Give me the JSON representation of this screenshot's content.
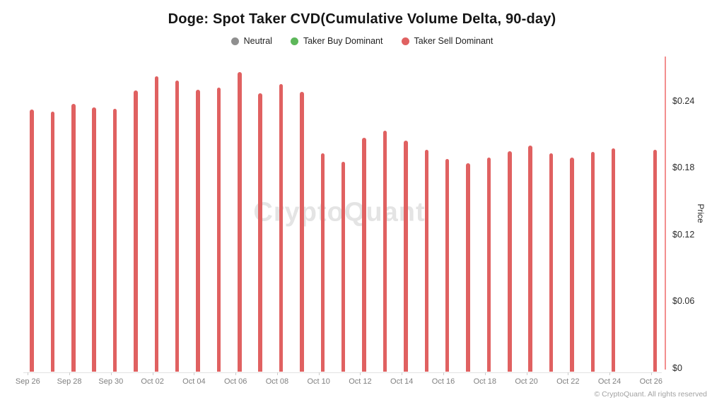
{
  "header": {
    "title": "Doge: Spot Taker CVD(Cumulative Volume Delta, 90-day)"
  },
  "legend": {
    "items": [
      {
        "label": "Neutral",
        "color": "#8f8f8f"
      },
      {
        "label": "Taker Buy Dominant",
        "color": "#5db75a"
      },
      {
        "label": "Taker Sell Dominant",
        "color": "#e06161"
      }
    ]
  },
  "watermark": "CryptoQuant",
  "footer": {
    "copyright": "© CryptoQuant. All rights reserved"
  },
  "colors": {
    "bar": "#e06161",
    "right_axis_line": "#f28f8f",
    "x_axis_line": "#e3e3e3",
    "watermark": "#e4e4e4"
  },
  "chart_data": {
    "type": "bar",
    "title": "Doge: Spot Taker CVD(Cumulative Volume Delta, 90-day)",
    "xlabel": "",
    "ylabel": "Price",
    "ylabel_side": "right",
    "ylim": [
      0,
      0.28
    ],
    "grid": false,
    "legend_position": "top-center",
    "categories": [
      "Sep 26",
      "Sep 27",
      "Sep 28",
      "Sep 29",
      "Sep 30",
      "Oct 01",
      "Oct 02",
      "Oct 03",
      "Oct 04",
      "Oct 05",
      "Oct 06",
      "Oct 07",
      "Oct 08",
      "Oct 09",
      "Oct 10",
      "Oct 11",
      "Oct 12",
      "Oct 13",
      "Oct 14",
      "Oct 15",
      "Oct 16",
      "Oct 17",
      "Oct 18",
      "Oct 19",
      "Oct 20",
      "Oct 21",
      "Oct 22",
      "Oct 23",
      "Oct 24",
      "Oct 25",
      "Oct 26"
    ],
    "series": [
      {
        "name": "Taker Sell Dominant",
        "color": "#e06161",
        "values": [
          0.232,
          0.23,
          0.237,
          0.234,
          0.233,
          0.249,
          0.262,
          0.258,
          0.25,
          0.252,
          0.266,
          0.247,
          0.255,
          0.248,
          0.193,
          0.185,
          0.207,
          0.213,
          0.204,
          0.196,
          0.188,
          0.184,
          0.189,
          0.195,
          0.2,
          0.193,
          0.189,
          0.194,
          0.197,
          null,
          0.196
        ]
      }
    ],
    "x_tick_labels": [
      "Sep 26",
      "Sep 28",
      "Sep 30",
      "Oct 02",
      "Oct 04",
      "Oct 06",
      "Oct 08",
      "Oct 10",
      "Oct 12",
      "Oct 14",
      "Oct 16",
      "Oct 18",
      "Oct 20",
      "Oct 22",
      "Oct 24",
      "Oct 26"
    ],
    "y_ticks": [
      {
        "label": "$0.24",
        "value": 0.24
      },
      {
        "label": "$0.18",
        "value": 0.18
      },
      {
        "label": "$0.12",
        "value": 0.12
      },
      {
        "label": "$0.06",
        "value": 0.06
      },
      {
        "label": "$0",
        "value": 0
      }
    ],
    "notes": "All bars are in the Taker Sell Dominant (red) state; no bar is drawn for Oct 25."
  }
}
